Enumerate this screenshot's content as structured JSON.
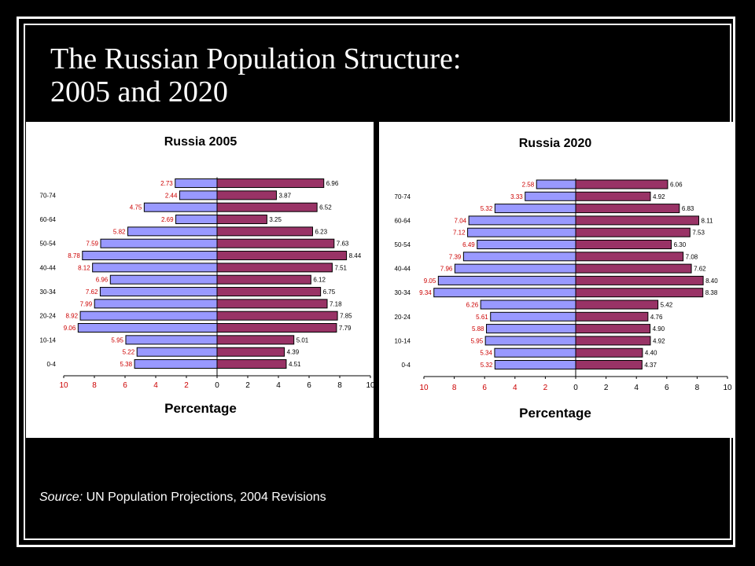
{
  "slide": {
    "title_line1": "The Russian Population Structure:",
    "title_line2": "2005 and 2020",
    "source_prefix": "Source:",
    "source_text": " UN Population Projections, 2004 Revisions"
  },
  "colors": {
    "left_bar": "#9999ff",
    "right_bar": "#993366",
    "left_label": "#cc0000",
    "right_label": "#000000"
  },
  "chart_data": [
    {
      "type": "bar",
      "title": "Russia 2005",
      "xlabel": "Percentage",
      "xlim": [
        -10,
        10
      ],
      "x_ticks": [
        "10",
        "8",
        "6",
        "4",
        "2",
        "0",
        "2",
        "4",
        "6",
        "8",
        "10"
      ],
      "categories": [
        "0-4",
        "",
        "10-14",
        "",
        "20-24",
        "",
        "30-34",
        "",
        "40-44",
        "",
        "50-54",
        "",
        "60-64",
        "",
        "70-74",
        ""
      ],
      "series": [
        {
          "values": [
            5.38,
            5.22,
            5.95,
            9.06,
            8.92,
            7.99,
            7.62,
            6.96,
            8.12,
            8.78,
            7.59,
            5.82,
            2.69,
            4.75,
            2.44,
            2.73
          ]
        },
        {
          "values": [
            4.51,
            4.39,
            5.01,
            7.79,
            7.85,
            7.18,
            6.75,
            6.12,
            7.51,
            8.44,
            7.63,
            6.23,
            3.25,
            6.52,
            3.87,
            6.96
          ]
        }
      ]
    },
    {
      "type": "bar",
      "title": "Russia 2020",
      "xlabel": "Percentage",
      "xlim": [
        -10,
        10
      ],
      "x_ticks": [
        "10",
        "8",
        "6",
        "4",
        "2",
        "0",
        "2",
        "4",
        "6",
        "8",
        "10"
      ],
      "categories": [
        "0-4",
        "",
        "10-14",
        "",
        "20-24",
        "",
        "30-34",
        "",
        "40-44",
        "",
        "50-54",
        "",
        "60-64",
        "",
        "70-74",
        ""
      ],
      "series": [
        {
          "values": [
            5.32,
            5.34,
            5.95,
            5.88,
            5.61,
            6.26,
            9.34,
            9.05,
            7.96,
            7.39,
            6.49,
            7.12,
            7.04,
            5.32,
            3.33,
            2.58
          ]
        },
        {
          "values": [
            4.37,
            4.4,
            4.92,
            4.9,
            4.76,
            5.42,
            8.38,
            8.4,
            7.62,
            7.08,
            6.3,
            7.53,
            8.11,
            6.83,
            4.92,
            6.06
          ]
        }
      ]
    }
  ]
}
